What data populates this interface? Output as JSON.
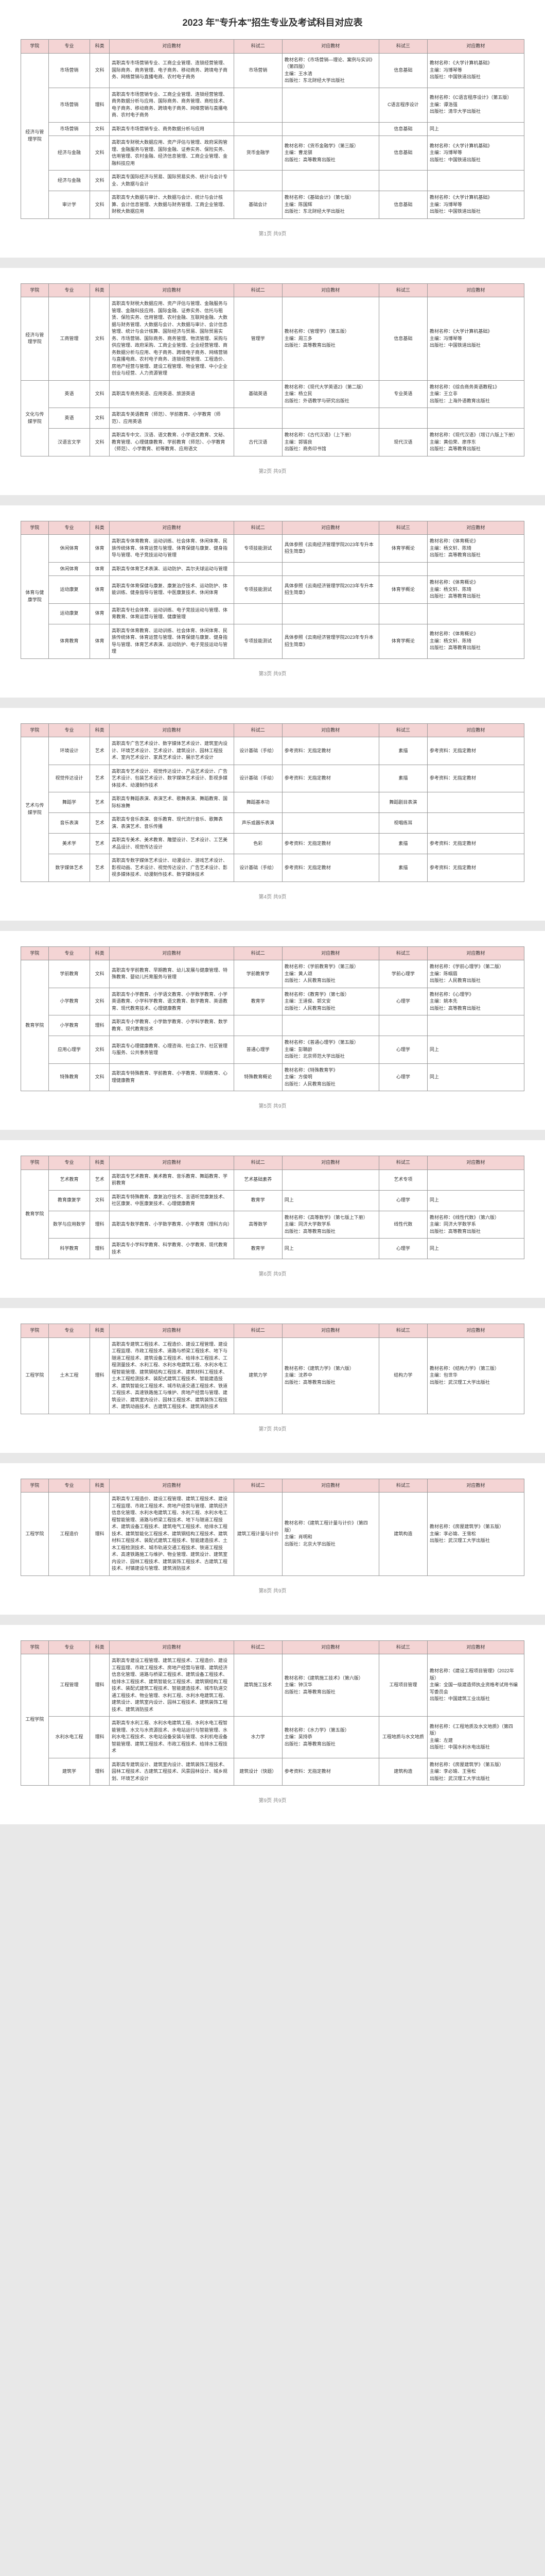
{
  "title": "2023 年\"专升本\"招生专业及考试科目对应表",
  "headers": {
    "xueyuan": "学院",
    "zhuanye": "专业",
    "kelei": "科类",
    "duiying": "对应教材",
    "keyi": "科试二",
    "jiaocai2": "对应教材",
    "keer": "科试三",
    "jiaocai3": "对应教材"
  },
  "pages": [
    {
      "rows": [
        {
          "xy": "经济与管理学院",
          "xyspan": 6,
          "zy": "市场营销",
          "kl": "文科",
          "dy": "高职高专市场营销专业、工商企业管理、连锁经营管理、国际商务、商务管理、电子商务、移动商务、跨境电子商务、网络营销与直播电商、农村电子商务",
          "k2": "市场营销",
          "jc2": "教材名称：《市场营销—理论、案例与实训》（第四版）\n主编：王水清\n出版社：东北财经大学出版社",
          "k3": "信息基础",
          "jc3": "教材名称：《大学计算机基础》\n主编：冯博琴等\n出版社：中国铁道出版社"
        },
        {
          "zy": "市场营销",
          "kl": "理科",
          "dy": "高职高专市场营销专业、工商企业管理、连锁经营管理、商务数据分析与应用、国际商务、商务管理、商检技术、电子商务、移动商务、跨境电子商务、网络营销与直播电商、农村电子商务",
          "k2": "",
          "jc2": "",
          "k3": "C语言程序设计",
          "jc3": "教材名称：《C语言程序设计》（第五版）\n主编：谭浩强\n出版社：清华大学出版社"
        },
        {
          "zy": "市场营销",
          "kl": "文科",
          "dy": "高职高专市场营销专业、商务数据分析与应用",
          "k2": "",
          "jc2": "",
          "k3": "信息基础",
          "jc3": "同上"
        },
        {
          "zy": "经济与金融",
          "kl": "文科",
          "dy": "高职高专财税大数据应用、资产评估与管理、政府采购管理、金融服务与管理、国际金融、证券实务、保险实务、信用管理、农村金融、经济信息管理、工商企业管理、金融科技应用",
          "k2": "货币金融学",
          "jc2": "教材名称：《货币金融学》（第三版）\n主编：曹龙骐\n出版社：高等教育出版社",
          "k3": "信息基础",
          "jc3": "教材名称：《大学计算机基础》\n主编：冯博琴等\n出版社：中国铁道出版社"
        },
        {
          "zy": "经济与金融",
          "kl": "文科",
          "dy": "高职高专国际经济与贸易、国际贸易实务、统计与会计专业、大数据与会计",
          "k2": "",
          "jc2": "",
          "k3": "",
          "jc3": ""
        },
        {
          "zy": "审计学",
          "kl": "文科",
          "dy": "高职高专大数据与审计、大数据与会计、统计与会计核算、会计信息管理、大数据与财务管理、工商企业管理、财税大数据应用",
          "k2": "基础会计",
          "jc2": "教材名称：《基础会计》（第七版）\n主编：陈国辉\n出版社：东北财经大学出版社",
          "k3": "信息基础",
          "jc3": "教材名称：《大学计算机基础》\n主编：冯博琴等\n出版社：中国铁道出版社"
        }
      ]
    },
    {
      "rows": [
        {
          "xy": "经济与管理学院",
          "xyspan": 1,
          "zy": "工商管理",
          "kl": "文科",
          "dy": "高职高专财税大数据应用、资产评估与管理、金融服务与管理、金融科技应用、国际金融、证券实务、信托与租赁、保险实务、信用管理、农村金融、互联网金融、大数据与财务管理、大数据与会计、大数据与审计、会计信息管理、统计与会计核算、国际经济与贸易、国际贸易实务、市场营销、国际商务、商务管理、物流管理、采购与供应管理、政府采购、工商企业管理、企业经营管理、商务数据分析与应用、电子商务、跨境电子商务、网络营销与直播电商、农村电子商务、连锁经营管理、工程造价、房地产经营与管理、建设工程管理、物业管理、中小企业创业与经营、人力资源管理",
          "k2": "管理学",
          "jc2": "教材名称：《管理学》（第五版）\n主编：周三多\n出版社：高等教育出版社",
          "k3": "信息基础",
          "jc3": "教材名称：《大学计算机基础》\n主编：冯博琴等\n出版社：中国铁道出版社"
        },
        {
          "xy": "文化与传媒学院",
          "xyspan": 3,
          "zy": "英语",
          "kl": "文科",
          "dy": "高职高专商务英语、应用英语、旅游英语",
          "k2": "基础英语",
          "jc2": "教材名称：《现代大学英语2》（第二版）\n主编：杨立民\n出版社：外语教学与研究出版社",
          "k3": "专业英语",
          "jc3": "教材名称：《综合商务英语教程1》\n主编：王立非\n出版社：上海外语教育出版社"
        },
        {
          "zy": "英语",
          "kl": "文科",
          "dy": "高职高专英语教育（师范）、学前教育、小学教育（师范）、应用英语",
          "k2": "",
          "jc2": "",
          "k3": "",
          "jc3": ""
        },
        {
          "zy": "汉语言文学",
          "kl": "文科",
          "dy": "高职高专中文、汉语、语文教育、小学语文教育、文秘、教育管理、心理健康教育、学前教育（师范）、小学教育（师范）、小学教育、初等教育、应用语文",
          "k2": "古代汉语",
          "jc2": "教材名称：《古代汉语》（上下册）\n主编：郭锡良\n出版社：商务印书馆",
          "k3": "现代汉语",
          "jc3": "教材名称：《现代汉语》（增订六版上下册）\n主编：黄伯荣、廖序东\n出版社：高等教育出版社"
        }
      ]
    },
    {
      "rows": [
        {
          "xy": "体育与健康学院",
          "xyspan": 5,
          "zy": "休闲体育",
          "kl": "体育",
          "dy": "高职高专体育教育、运动训练、社会体育、休闲体育、民族传统体育、体育运营与管理、体育保健与康复、健身指导与管理、电子竞技运动与管理",
          "k2": "专项技能测试",
          "jc2": "具体参照《云南经济管理学院2023年专升本招生简章》",
          "k3": "体育学概论",
          "jc3": "教材名称：《体育概论》\n主编：杨文轩、陈琦\n出版社：高等教育出版社"
        },
        {
          "zy": "休闲体育",
          "kl": "体育",
          "dy": "高职高专体育艺术表演、运动防护、高尔夫球运动与管理",
          "k2": "",
          "jc2": "",
          "k3": "",
          "jc3": ""
        },
        {
          "zy": "运动康复",
          "kl": "体育",
          "dy": "高职高专体育保健与康复、康复治疗技术、运动防护、体能训练、健身指导与管理、中医康复技术、休闲体育",
          "k2": "专项技能测试",
          "jc2": "具体参照《云南经济管理学院2023年专升本招生简章》",
          "k3": "体育学概论",
          "jc3": "教材名称：《体育概论》\n主编：杨文轩、陈琦\n出版社：高等教育出版社"
        },
        {
          "zy": "运动康复",
          "kl": "体育",
          "dy": "高职高专社会体育、运动训练、电子竞技运动与管理、体育教育、体育运营与管理、健康管理",
          "k2": "",
          "jc2": "",
          "k3": "",
          "jc3": ""
        },
        {
          "zy": "体育教育",
          "kl": "体育",
          "dy": "高职高专体育教育、运动训练、社会体育、休闲体育、民族传统体育、体育运营与管理、体育保健与康复、健身指导与管理、体育艺术表演、运动防护、电子竞技运动与管理",
          "k2": "专项技能测试",
          "jc2": "具体参照《云南经济管理学院2023年专升本招生简章》",
          "k3": "体育学概论",
          "jc3": "教材名称：《体育概论》\n主编：杨文轩、陈琦\n出版社：高等教育出版社"
        }
      ]
    },
    {
      "rows": [
        {
          "xy": "艺术与传媒学院",
          "xyspan": 6,
          "zy": "环境设计",
          "kl": "艺术",
          "dy": "高职高专广告艺术设计、数字媒体艺术设计、建筑室内设计、环境艺术设计、艺术设计、建筑设计、园林工程技术、室内艺术设计、家具艺术设计、展示艺术设计",
          "k2": "设计基础（手绘）",
          "jc2": "参考资料：无指定教材",
          "k3": "素描",
          "jc3": "参考资料：无指定教材"
        },
        {
          "zy": "视觉传达设计",
          "kl": "艺术",
          "dy": "高职高专艺术设计、视觉传达设计、产品艺术设计、广告艺术设计、包装艺术设计、数字媒体艺术设计、影视多媒体技术、动漫制作技术",
          "k2": "设计基础（手绘）",
          "jc2": "参考资料：无指定教材",
          "k3": "素描",
          "jc3": "参考资料：无指定教材"
        },
        {
          "zy": "舞蹈学",
          "kl": "艺术",
          "dy": "高职高专舞蹈表演、表演艺术、歌舞表演、舞蹈教育、国际标准舞",
          "k2": "舞蹈基本功",
          "jc2": "",
          "k3": "舞蹈剧目表演",
          "jc3": ""
        },
        {
          "zy": "音乐表演",
          "kl": "艺术",
          "dy": "高职高专音乐表演、音乐教育、现代流行音乐、歌舞表演、表演艺术、音乐传播",
          "k2": "声乐或器乐表演",
          "jc2": "",
          "k3": "视唱练耳",
          "jc3": ""
        },
        {
          "zy": "美术学",
          "kl": "艺术",
          "dy": "高职高专美术、美术教育、雕塑设计、艺术设计、工艺美术品设计、视觉传达设计",
          "k2": "色彩",
          "jc2": "参考资料：无指定教材",
          "k3": "素描",
          "jc3": "参考资料：无指定教材"
        },
        {
          "zy": "数字媒体艺术",
          "kl": "艺术",
          "dy": "高职高专数字媒体艺术设计、动漫设计、游戏艺术设计、影视动画、艺术设计、视觉传达设计、广告艺术设计、影视多媒体技术、动漫制作技术、数字媒体技术",
          "k2": "设计基础（手绘）",
          "jc2": "参考资料：无指定教材",
          "k3": "素描",
          "jc3": "参考资料：无指定教材"
        }
      ]
    },
    {
      "rows": [
        {
          "xy": "教育学院",
          "xyspan": 5,
          "zy": "学前教育",
          "kl": "文科",
          "dy": "高职高专学前教育、早期教育、幼儿发展与健康管理、特殊教育、婴幼儿托育服务与管理",
          "k2": "学前教育学",
          "jc2": "教材名称：《学前教育学》（第三版）\n主编：黄人颂\n出版社：人民教育出版社",
          "k3": "学前心理学",
          "jc3": "教材名称：《学前心理学》（第二版）\n主编：陈帼眉\n出版社：人民教育出版社"
        },
        {
          "zy": "小学教育",
          "kl": "文科",
          "dy": "高职高专小学教育、小学语文教育、小学数学教育、小学英语教育、小学科学教育、语文教育、数学教育、英语教育、现代教育技术、心理健康教育",
          "k2": "教育学",
          "jc2": "教材名称：《教育学》（第七版）\n主编：王道俊、郭文安\n出版社：人民教育出版社",
          "k3": "心理学",
          "jc3": "教材名称：《心理学》\n主编：姚本先\n出版社：高等教育出版社"
        },
        {
          "zy": "小学教育",
          "kl": "理科",
          "dy": "高职高专小学教育、小学数学教育、小学科学教育、数学教育、现代教育技术",
          "k2": "",
          "jc2": "",
          "k3": "",
          "jc3": ""
        },
        {
          "zy": "应用心理学",
          "kl": "文科",
          "dy": "高职高专心理健康教育、心理咨询、社会工作、社区管理与服务、公共事务管理",
          "k2": "普通心理学",
          "jc2": "教材名称：《普通心理学》（第五版）\n主编：彭聃龄\n出版社：北京师范大学出版社",
          "k3": "心理学",
          "jc3": "同上"
        },
        {
          "zy": "特殊教育",
          "kl": "文科",
          "dy": "高职高专特殊教育、学前教育、小学教育、早期教育、心理健康教育",
          "k2": "特殊教育概论",
          "jc2": "教材名称：《特殊教育学》\n主编：方俊明\n出版社：人民教育出版社",
          "k3": "心理学",
          "jc3": "同上"
        }
      ]
    },
    {
      "rows": [
        {
          "xy": "教育学院",
          "xyspan": 4,
          "zy": "艺术教育",
          "kl": "艺术",
          "dy": "高职高专艺术教育、美术教育、音乐教育、舞蹈教育、学前教育",
          "k2": "艺术基础素养",
          "jc2": "",
          "k3": "艺术专项",
          "jc3": ""
        },
        {
          "zy": "教育康复学",
          "kl": "文科",
          "dy": "高职高专特殊教育、康复治疗技术、言语听觉康复技术、社区康复、中医康复技术、心理健康教育",
          "k2": "教育学",
          "jc2": "同上",
          "k3": "心理学",
          "jc3": "同上"
        },
        {
          "zy": "数学与应用数学",
          "kl": "理科",
          "dy": "高职高专数学教育、小学数学教育、小学教育（理科方向）",
          "k2": "高等数学",
          "jc2": "教材名称：《高等数学》（第七版上下册）\n主编：同济大学数学系\n出版社：高等教育出版社",
          "k3": "线性代数",
          "jc3": "教材名称：《线性代数》（第六版）\n主编：同济大学数学系\n出版社：高等教育出版社"
        },
        {
          "zy": "科学教育",
          "kl": "理科",
          "dy": "高职高专小学科学教育、科学教育、小学教育、现代教育技术",
          "k2": "教育学",
          "jc2": "同上",
          "k3": "心理学",
          "jc3": "同上"
        }
      ]
    },
    {
      "rows": [
        {
          "xy": "工程学院",
          "xyspan": 1,
          "zy": "土木工程",
          "kl": "理科",
          "dy": "高职高专建筑工程技术、工程造价、建设工程管理、建设工程监理、市政工程技术、道路与桥梁工程技术、地下与隧道工程技术、建筑设备工程技术、给排水工程技术、工程测量技术、水利工程、水利水电建筑工程、水利水电工程智能管理、建筑钢结构工程技术、建筑材料工程技术、土木工程检测技术、装配式建筑工程技术、智能建造技术、建筑智能化工程技术、城市轨道交通工程技术、铁道工程技术、高速铁路施工与维护、房地产经营与管理、建筑设计、建筑室内设计、园林工程技术、建筑装饰工程技术、建筑动画技术、古建筑工程技术、建筑消防技术",
          "k2": "建筑力学",
          "jc2": "教材名称：《建筑力学》（第六版）\n主编：沈养中\n出版社：高等教育出版社",
          "k3": "结构力学",
          "jc3": "教材名称：《结构力学》（第三版）\n主编：包世华\n出版社：武汉理工大学出版社"
        }
      ]
    },
    {
      "rows": [
        {
          "xy": "工程学院",
          "xyspan": 1,
          "zy": "工程造价",
          "kl": "理科",
          "dy": "高职高专工程造价、建设工程管理、建筑工程技术、建设工程监理、市政工程技术、房地产经营与管理、建筑经济信息化管理、水利水电建筑工程、水利工程、水利水电工程智能管理、道路与桥梁工程技术、地下与隧道工程技术、建筑设备工程技术、建筑电气工程技术、给排水工程技术、建筑智能化工程技术、建筑钢结构工程技术、建筑材料工程技术、装配式建筑工程技术、智能建造技术、土木工程检测技术、城市轨道交通工程技术、铁道工程技术、高速铁路施工与维护、物业管理、建筑设计、建筑室内设计、园林工程技术、建筑装饰工程技术、古建筑工程技术、村镇建设与管理、建筑消防技术",
          "k2": "建筑工程计量与计价",
          "jc2": "教材名称：《建筑工程计量与计价》（第四版）\n主编：肖明和\n出版社：北京大学出版社",
          "k3": "建筑构造",
          "jc3": "教材名称：《房屋建筑学》（第五版）\n主编：李必瑜、王雪松\n出版社：武汉理工大学出版社"
        }
      ]
    },
    {
      "rows": [
        {
          "xy": "工程学院",
          "xyspan": 3,
          "zy": "工程管理",
          "kl": "理科",
          "dy": "高职高专建设工程管理、建筑工程技术、工程造价、建设工程监理、市政工程技术、房地产经营与管理、建筑经济信息化管理、道路与桥梁工程技术、建筑设备工程技术、给排水工程技术、建筑智能化工程技术、建筑钢结构工程技术、装配式建筑工程技术、智能建造技术、城市轨道交通工程技术、物业管理、水利工程、水利水电建筑工程、建筑设计、建筑室内设计、园林工程技术、建筑装饰工程技术、建筑消防技术",
          "k2": "建筑施工技术",
          "jc2": "教材名称：《建筑施工技术》（第六版）\n主编：钟汉华\n出版社：高等教育出版社",
          "k3": "工程项目管理",
          "jc3": "教材名称：《建设工程项目管理》（2022年版）\n主编：全国一级建造师执业资格考试用书编写委员会\n出版社：中国建筑工业出版社"
        },
        {
          "zy": "水利水电工程",
          "kl": "理科",
          "dy": "高职高专水利工程、水利水电建筑工程、水利水电工程智能管理、水文与水资源技术、水电站运行与智能管理、水利水电工程技术、水电站设备安装与管理、水利机电设备智能管理、建筑工程技术、市政工程技术、给排水工程技术",
          "k2": "水力学",
          "jc2": "教材名称：《水力学》（第五版）\n主编：吴持恭\n出版社：高等教育出版社",
          "k3": "工程地质与水文地质",
          "jc3": "教材名称：《工程地质及水文地质》（第四版）\n主编：左建\n出版社：中国水利水电出版社"
        },
        {
          "zy": "建筑学",
          "kl": "理科",
          "dy": "高职高专建筑设计、建筑室内设计、建筑装饰工程技术、园林工程技术、古建筑工程技术、风景园林设计、城乡规划、环境艺术设计",
          "k2": "建筑设计（快题）",
          "jc2": "参考资料：无指定教材",
          "k3": "建筑构造",
          "jc3": "教材名称：《房屋建筑学》（第五版）\n主编：李必瑜、王雪松\n出版社：武汉理工大学出版社"
        }
      ]
    }
  ]
}
